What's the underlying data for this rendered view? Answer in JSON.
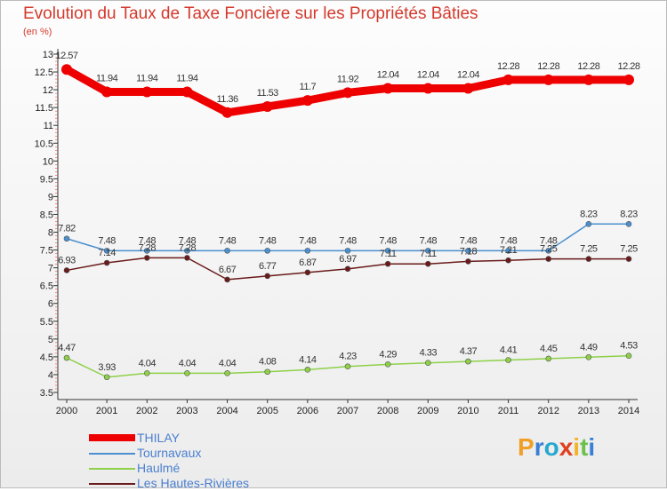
{
  "title": "Evolution du Taux de Taxe Foncière sur les Propriétés Bâties",
  "unit_label": "(en %)",
  "logo": {
    "text": "Proxiti",
    "colors": [
      "#f0a028",
      "#3a7fd6",
      "#28a8d0",
      "#e04020",
      "#f0b428",
      "#6bc04a",
      "#3a7fd6"
    ]
  },
  "chart_data": {
    "type": "line",
    "title": "Evolution du Taux de Taxe Foncière sur les Propriétés Bâties",
    "ylabel": "(en %)",
    "xlabel": "",
    "x": [
      2000,
      2001,
      2002,
      2003,
      2004,
      2005,
      2006,
      2007,
      2008,
      2009,
      2010,
      2011,
      2012,
      2013,
      2014
    ],
    "ylim": [
      3.5,
      13
    ],
    "yticks": [
      3.5,
      4,
      4.5,
      5,
      5.5,
      6,
      6.5,
      7,
      7.5,
      8,
      8.5,
      9,
      9.5,
      10,
      10.5,
      11,
      11.5,
      12,
      12.5,
      13
    ],
    "grid": false,
    "legend_position": "bottom-left",
    "series": [
      {
        "name": "THILAY",
        "color": "#ee0000",
        "values": [
          12.57,
          11.94,
          11.94,
          11.94,
          11.36,
          11.53,
          11.7,
          11.92,
          12.04,
          12.04,
          12.04,
          12.28,
          12.28,
          12.28,
          12.28
        ],
        "labels": [
          "12.57",
          "11.94",
          "11.94",
          "11.94",
          "11.36",
          "11.53",
          "11.7",
          "11.92",
          "12.04",
          "12.04",
          "12.04",
          "12.28",
          "12.28",
          "12.28",
          "12.28"
        ]
      },
      {
        "name": "Tournavaux",
        "color": "#4a90d0",
        "values": [
          7.82,
          7.48,
          7.48,
          7.48,
          7.48,
          7.48,
          7.48,
          7.48,
          7.48,
          7.48,
          7.48,
          7.48,
          7.48,
          8.23,
          8.23
        ],
        "labels": [
          "7.82",
          "7.48",
          "7.48",
          "7.48",
          "7.48",
          "7.48",
          "7.48",
          "7.48",
          "7.48",
          "7.48",
          "7.48",
          "7.48",
          "7.48",
          "8.23",
          "8.23"
        ]
      },
      {
        "name": "Haulmé",
        "color": "#8ed048",
        "values": [
          4.47,
          3.93,
          4.04,
          4.04,
          4.04,
          4.08,
          4.14,
          4.23,
          4.29,
          4.33,
          4.37,
          4.41,
          4.45,
          4.49,
          4.53
        ],
        "labels": [
          "4.47",
          "3.93",
          "4.04",
          "4.04",
          "4.04",
          "4.08",
          "4.14",
          "4.23",
          "4.29",
          "4.33",
          "4.37",
          "4.41",
          "4.45",
          "4.49",
          "4.53"
        ]
      },
      {
        "name": "Les Hautes-Rivières",
        "color": "#6a1a1a",
        "values": [
          6.93,
          7.14,
          7.28,
          7.28,
          6.67,
          6.77,
          6.87,
          6.97,
          7.11,
          7.11,
          7.18,
          7.21,
          7.25,
          7.25,
          7.25
        ],
        "labels": [
          "6.93",
          "7.14",
          "7.28",
          "7.28",
          "6.67",
          "6.77",
          "6.87",
          "6.97",
          "7.11",
          "7.11",
          "7.18",
          "7.21",
          "7.25",
          "7.25",
          "7.25"
        ]
      }
    ]
  }
}
